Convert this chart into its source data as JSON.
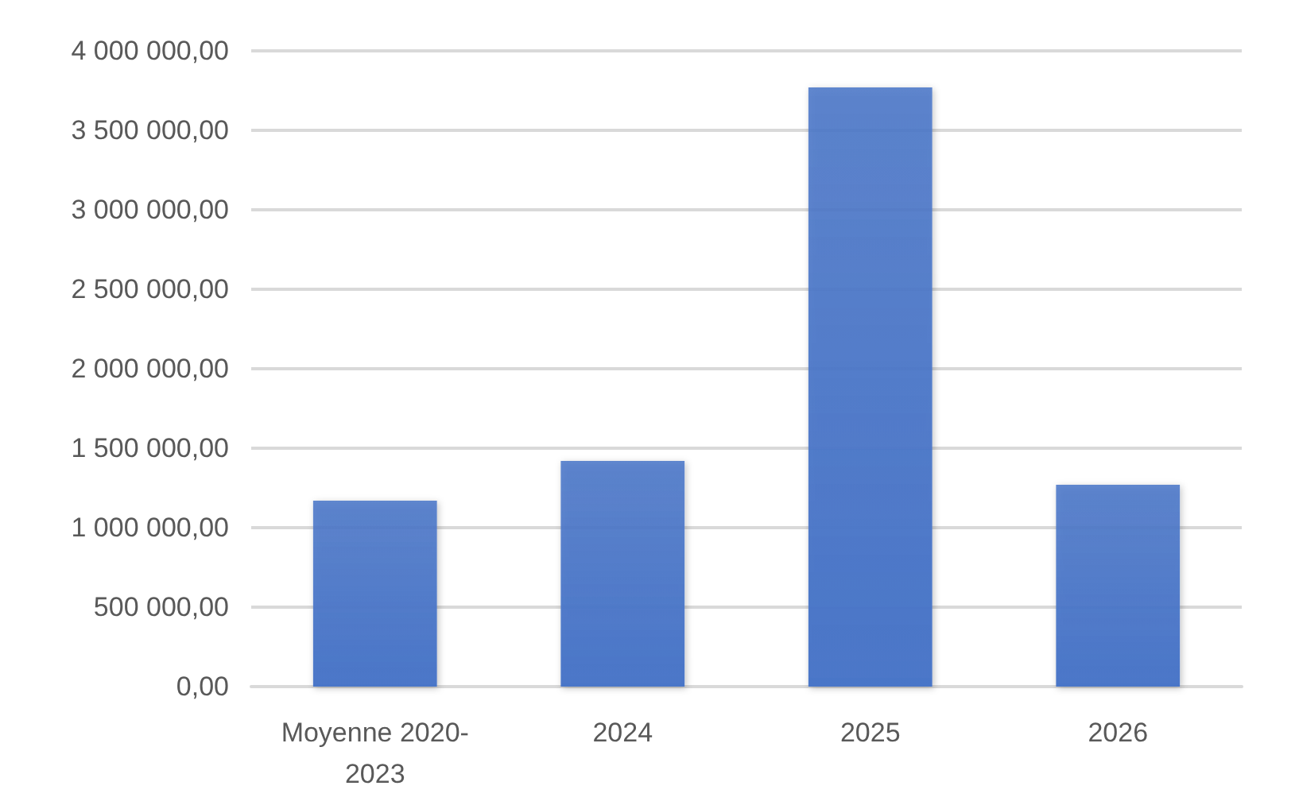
{
  "chart_data": {
    "type": "bar",
    "categories": [
      "Moyenne 2020-\n2023",
      "2024",
      "2025",
      "2026"
    ],
    "values": [
      1170000,
      1420000,
      3770000,
      1270000
    ],
    "color": "#4a76c8",
    "ylim": [
      0,
      4000000
    ],
    "yticks": [
      {
        "value": 0,
        "label": "0,00"
      },
      {
        "value": 500000,
        "label": "500 000,00"
      },
      {
        "value": 1000000,
        "label": "1 000 000,00"
      },
      {
        "value": 1500000,
        "label": "1 500 000,00"
      },
      {
        "value": 2000000,
        "label": "2 000 000,00"
      },
      {
        "value": 2500000,
        "label": "2 500 000,00"
      },
      {
        "value": 3000000,
        "label": "3 000 000,00"
      },
      {
        "value": 3500000,
        "label": "3 500 000,00"
      },
      {
        "value": 4000000,
        "label": "4 000 000,00"
      }
    ],
    "grid": "y"
  }
}
